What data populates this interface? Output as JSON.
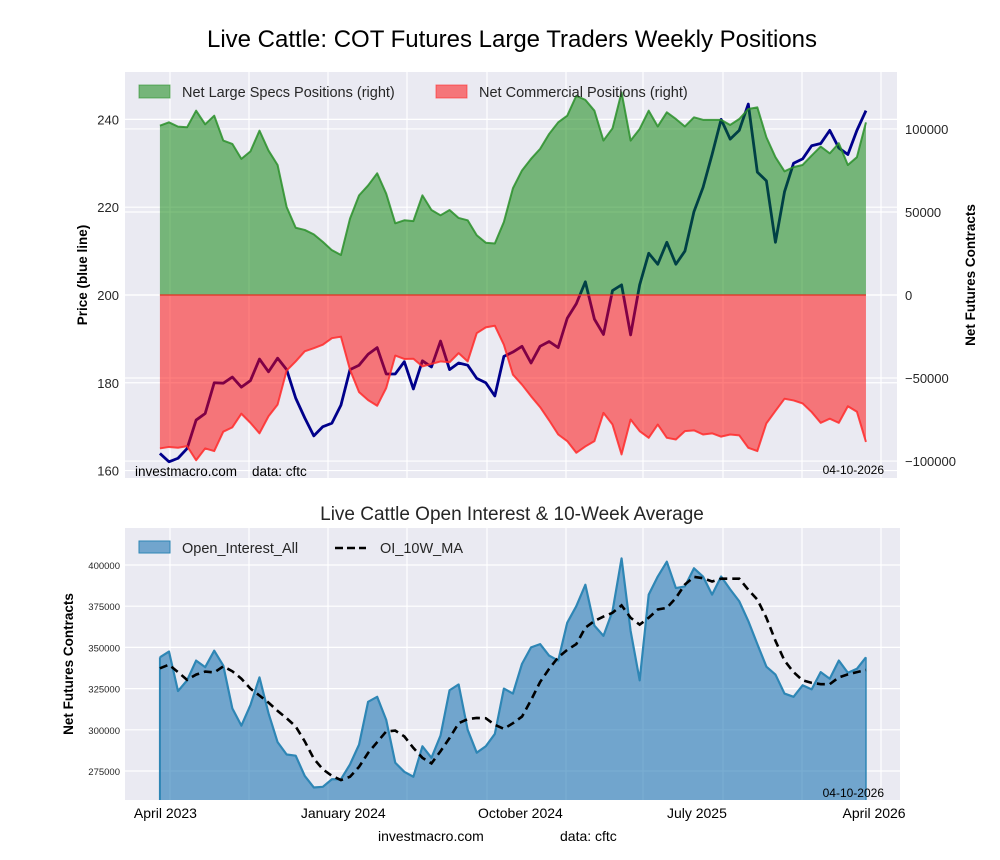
{
  "title": "Live Cattle: COT Futures Large Traders Weekly Positions",
  "footer": {
    "site": "investmacro.com",
    "data": "data: cftc"
  },
  "colors": {
    "plot_background": "#eaeaf2",
    "grid": "#ffffff",
    "price_line": "#00008b",
    "specs_fill": "#008000",
    "specs_line": "#2a8f2a",
    "commercial_fill": "#ff0000",
    "commercial_line": "#ff2a2a",
    "oi_fill": "#1f77b4",
    "oi_line": "#2e86b5",
    "ma_line": "#000000"
  },
  "chart_data": [
    {
      "type": "area",
      "title": "",
      "ylabel_left": "Price (blue line)",
      "ylabel_right": "Net Futures Contracts",
      "grid": true,
      "legend_placement": "top-left",
      "xlim": [
        "2023-02-16",
        "2026-05-25"
      ],
      "ylim_left": [
        158.3,
        250.8
      ],
      "ylim_right": [
        -110200,
        134300
      ],
      "yticks_left": [
        160,
        180,
        200,
        220,
        240
      ],
      "yticks_right": [
        -100000,
        -50000,
        0,
        50000,
        100000
      ],
      "annotations": {
        "site": "investmacro.com",
        "data": "data: cftc",
        "date": "04-10-2026"
      },
      "x": [
        "2023-04-11",
        "2023-04-25",
        "2023-05-09",
        "2023-05-23",
        "2023-06-06",
        "2023-06-20",
        "2023-07-04",
        "2023-07-18",
        "2023-08-01",
        "2023-08-15",
        "2023-08-29",
        "2023-09-12",
        "2023-09-26",
        "2023-10-10",
        "2023-10-24",
        "2023-11-07",
        "2023-11-21",
        "2023-12-05",
        "2023-12-19",
        "2024-01-02",
        "2024-01-16",
        "2024-01-30",
        "2024-02-13",
        "2024-02-27",
        "2024-03-12",
        "2024-03-26",
        "2024-04-09",
        "2024-04-23",
        "2024-05-07",
        "2024-05-21",
        "2024-06-04",
        "2024-06-18",
        "2024-07-02",
        "2024-07-16",
        "2024-07-30",
        "2024-08-13",
        "2024-08-27",
        "2024-09-10",
        "2024-09-24",
        "2024-10-08",
        "2024-10-22",
        "2024-11-05",
        "2024-11-19",
        "2024-12-03",
        "2024-12-17",
        "2024-12-31",
        "2025-01-14",
        "2025-01-28",
        "2025-02-11",
        "2025-02-25",
        "2025-03-11",
        "2025-03-25",
        "2025-04-08",
        "2025-04-22",
        "2025-05-06",
        "2025-05-20",
        "2025-06-03",
        "2025-06-17",
        "2025-07-01",
        "2025-07-15",
        "2025-07-29",
        "2025-08-12",
        "2025-08-26",
        "2025-09-09",
        "2025-09-23",
        "2025-10-07",
        "2025-10-21",
        "2025-11-04",
        "2025-11-18",
        "2025-12-02",
        "2025-12-16",
        "2025-12-30",
        "2026-01-13",
        "2026-01-27",
        "2026-02-10",
        "2026-02-24",
        "2026-03-10",
        "2026-03-24",
        "2026-04-07"
      ],
      "series": [
        {
          "name": "Net Large Specs Positions (right)",
          "axis": "right",
          "kind": "fill",
          "values": [
            102000,
            104000,
            101400,
            101000,
            111000,
            102800,
            108000,
            93000,
            91000,
            82000,
            86500,
            99000,
            87000,
            78300,
            53000,
            40500,
            39200,
            36500,
            32000,
            27000,
            24100,
            46000,
            60000,
            66000,
            73300,
            61000,
            43200,
            45000,
            44500,
            60000,
            51200,
            48000,
            51200,
            46400,
            45000,
            36000,
            31500,
            31000,
            44000,
            64300,
            75000,
            82000,
            88000,
            97000,
            104000,
            108000,
            120000,
            117500,
            111000,
            93000,
            100400,
            122000,
            93000,
            100000,
            111000,
            101500,
            110000,
            106000,
            101500,
            107000,
            105500,
            105500,
            105500,
            102400,
            106000,
            112000,
            113000,
            95000,
            83000,
            74500,
            77000,
            78300,
            84000,
            89400,
            85300,
            91400,
            78300,
            83000,
            104000
          ]
        },
        {
          "name": "Net Commercial Positions (right)",
          "axis": "right",
          "kind": "fill",
          "values": [
            -92400,
            -91500,
            -92000,
            -91000,
            -99500,
            -92400,
            -94000,
            -82300,
            -79700,
            -71500,
            -77000,
            -83300,
            -73000,
            -66000,
            -45500,
            -40000,
            -33900,
            -32000,
            -29900,
            -26000,
            -25100,
            -45000,
            -58500,
            -63300,
            -66700,
            -56000,
            -36500,
            -38500,
            -38400,
            -43000,
            -41500,
            -40000,
            -40500,
            -35000,
            -40000,
            -23000,
            -19500,
            -18500,
            -30000,
            -48000,
            -54000,
            -61000,
            -67500,
            -75500,
            -84000,
            -88000,
            -95000,
            -91200,
            -88000,
            -71000,
            -78000,
            -96000,
            -75000,
            -82000,
            -86000,
            -78000,
            -86000,
            -87000,
            -82000,
            -81500,
            -84000,
            -83300,
            -85300,
            -84000,
            -84500,
            -92000,
            -94000,
            -77300,
            -69800,
            -62500,
            -63500,
            -65300,
            -70500,
            -77000,
            -74500,
            -77000,
            -67000,
            -70300,
            -88500
          ]
        },
        {
          "axis": "left",
          "kind": "line",
          "values": [
            163.9,
            162,
            162.8,
            165,
            171.5,
            173,
            180,
            179.9,
            181.3,
            179,
            180.5,
            185.4,
            182.5,
            185.6,
            183,
            176.5,
            172,
            167.9,
            170,
            170.8,
            174.9,
            183,
            184,
            186.5,
            188,
            182,
            182,
            184.8,
            178.6,
            185,
            183.6,
            189.5,
            183,
            184.5,
            184,
            181,
            180,
            177,
            186,
            187,
            188.3,
            184.5,
            188.3,
            189.4,
            188,
            194.7,
            198,
            203,
            194.5,
            191,
            201,
            202.3,
            190.9,
            202.3,
            209.5,
            207,
            212,
            207,
            210,
            219,
            224.5,
            232,
            240,
            235.5,
            237.5,
            243.5,
            228,
            226,
            212,
            223.5,
            230,
            231,
            234,
            234.5,
            237.5,
            233.5,
            232,
            237.5,
            242
          ]
        }
      ]
    },
    {
      "type": "area",
      "title": "Live Cattle Open Interest & 10-Week Average",
      "ylabel": "Net Futures Contracts",
      "grid": true,
      "legend_placement": "top-left",
      "xlim": [
        "2023-02-16",
        "2026-05-25"
      ],
      "ylim": [
        257400,
        422450
      ],
      "yticks": [
        275000,
        300000,
        325000,
        350000,
        375000,
        400000
      ],
      "xticks": [
        {
          "date": "2023-04-01",
          "label": "April 2023"
        },
        {
          "date": "2024-01-01",
          "label": "January 2024"
        },
        {
          "date": "2024-10-01",
          "label": "October 2024"
        },
        {
          "date": "2025-07-01",
          "label": "July 2025"
        },
        {
          "date": "2026-04-01",
          "label": "April 2026"
        }
      ],
      "annotations": {
        "date": "04-10-2026"
      },
      "series": [
        {
          "name": "Open_Interest_All",
          "kind": "fill",
          "values": [
            344000,
            347500,
            323500,
            330000,
            342000,
            338000,
            348000,
            339000,
            313000,
            302500,
            315000,
            331800,
            310000,
            292500,
            285000,
            284300,
            272000,
            265000,
            265400,
            270000,
            270000,
            279000,
            291000,
            317000,
            320000,
            306000,
            280000,
            274500,
            271500,
            290000,
            283000,
            296500,
            324000,
            327500,
            300000,
            286100,
            290000,
            297500,
            325000,
            322000,
            340000,
            350000,
            352000,
            345000,
            342000,
            365000,
            375000,
            388000,
            363200,
            357000,
            372000,
            404000,
            360000,
            330000,
            382000,
            393000,
            402000,
            386000,
            387000,
            398000,
            393000,
            382000,
            393000,
            385200,
            378000,
            366000,
            352000,
            338300,
            333500,
            322000,
            320000,
            327000,
            324500,
            335000,
            331000,
            342000,
            334600,
            337000,
            344000
          ]
        },
        {
          "name": "OI_10W_MA",
          "kind": "dashed-line",
          "values": [
            337300,
            339500,
            335000,
            330300,
            333500,
            335300,
            334800,
            338500,
            335500,
            331000,
            325000,
            320800,
            316500,
            311500,
            307000,
            302000,
            293000,
            282500,
            276000,
            272100,
            269500,
            271500,
            277500,
            286000,
            292500,
            299000,
            299500,
            296000,
            289000,
            283000,
            279600,
            287000,
            295000,
            304000,
            306500,
            307200,
            307000,
            303000,
            300600,
            304000,
            308000,
            318000,
            329000,
            337000,
            344000,
            348500,
            352000,
            362000,
            366000,
            368700,
            371000,
            375500,
            368000,
            363800,
            368000,
            373000,
            374000,
            380000,
            388200,
            392800,
            392000,
            390000,
            391700,
            391700,
            391700,
            385000,
            379000,
            368000,
            354000,
            342000,
            335000,
            330000,
            328500,
            327700,
            327700,
            331800,
            333600,
            335000,
            336300
          ]
        }
      ]
    }
  ]
}
